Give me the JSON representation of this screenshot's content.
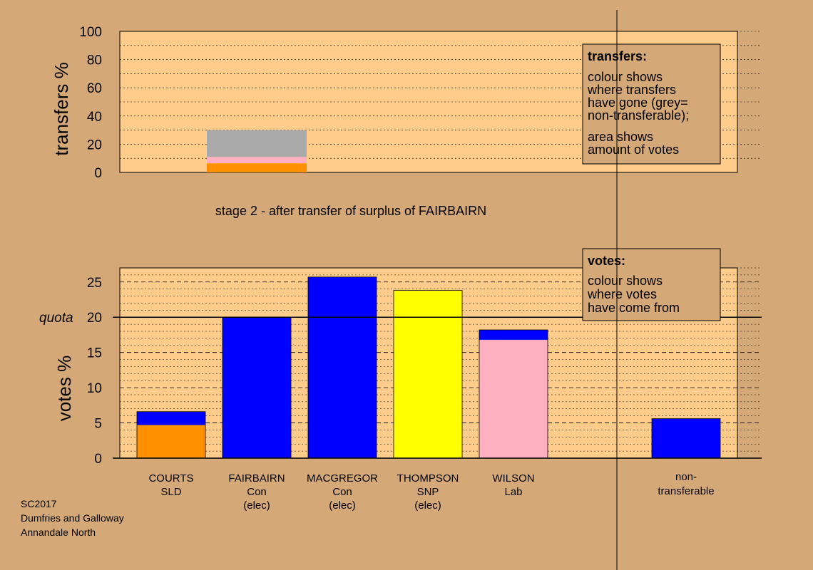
{
  "chart_data": [
    {
      "type": "bar",
      "name": "transfers",
      "ylabel": "transfers %",
      "ylim": [
        0,
        100
      ],
      "yticks": [
        0,
        20,
        40,
        60,
        80,
        100
      ],
      "title": "stage 2 - after transfer of surplus of FAIRBAIRN",
      "stacked_bar": {
        "segments": [
          {
            "from": 0,
            "to": 6.5,
            "color": "#ff9000"
          },
          {
            "from": 6.5,
            "to": 11,
            "color": "#ffb0c0"
          },
          {
            "from": 11,
            "to": 30,
            "color": "#aaaaaa"
          }
        ]
      },
      "legend": {
        "title": "transfers:",
        "lines1": [
          "colour shows",
          "where transfers",
          "have gone (grey=",
          "non-transferable);"
        ],
        "lines2": [
          "area shows",
          "amount of votes"
        ]
      }
    },
    {
      "type": "bar",
      "name": "votes",
      "ylabel": "votes %",
      "ylim": [
        0,
        27
      ],
      "yticks": [
        0,
        5,
        10,
        15,
        20,
        25
      ],
      "quota": 20,
      "quota_label": "quota",
      "categories": [
        {
          "name": "COURTS",
          "party": "SLD",
          "status": "",
          "segments": [
            {
              "value": 4.7,
              "color": "#ff9000"
            },
            {
              "value": 1.9,
              "color": "#0000ff"
            }
          ]
        },
        {
          "name": "FAIRBAIRN",
          "party": "Con",
          "status": "(elec)",
          "segments": [
            {
              "value": 20.0,
              "color": "#0000ff"
            }
          ]
        },
        {
          "name": "MACGREGOR",
          "party": "Con",
          "status": "(elec)",
          "segments": [
            {
              "value": 25.7,
              "color": "#0000ff"
            }
          ]
        },
        {
          "name": "THOMPSON",
          "party": "SNP",
          "status": "(elec)",
          "segments": [
            {
              "value": 23.8,
              "color": "#ffff00"
            }
          ]
        },
        {
          "name": "WILSON",
          "party": "Lab",
          "status": "",
          "segments": [
            {
              "value": 16.8,
              "color": "#ffb0c0"
            },
            {
              "value": 1.4,
              "color": "#0000ff"
            }
          ]
        }
      ],
      "nontransferable": {
        "line1": "non-",
        "line2": "transferable",
        "value": 5.6,
        "color": "#0000ff"
      },
      "legend": {
        "title": "votes:",
        "lines": [
          "colour shows",
          "where votes",
          "have come from"
        ]
      }
    }
  ],
  "footer": {
    "line1": "SC2017",
    "line2": "Dumfries and Galloway",
    "line3": "Annandale North"
  },
  "colors": {
    "background": "#d5a877",
    "plot_area": "#ffcc8c"
  }
}
